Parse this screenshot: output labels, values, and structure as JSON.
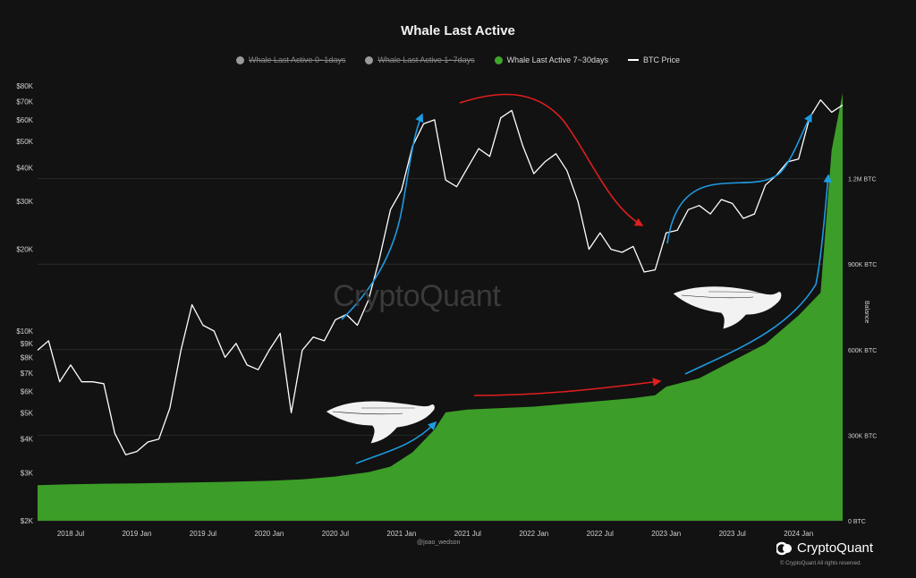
{
  "chart_data": {
    "type": "area",
    "title": "Whale Last Active",
    "y_scale": "log",
    "ylim": [
      2000,
      80000
    ],
    "y2lim": [
      0,
      1500000
    ],
    "y_ticks": [
      {
        "value": 80000,
        "label": "$80K"
      },
      {
        "value": 70000,
        "label": "$70K"
      },
      {
        "value": 60000,
        "label": "$60K"
      },
      {
        "value": 50000,
        "label": "$50K"
      },
      {
        "value": 40000,
        "label": "$40K"
      },
      {
        "value": 30000,
        "label": "$30K"
      },
      {
        "value": 20000,
        "label": "$20K"
      },
      {
        "value": 10000,
        "label": "$10K"
      },
      {
        "value": 9000,
        "label": "$9K"
      },
      {
        "value": 8000,
        "label": "$8K"
      },
      {
        "value": 7000,
        "label": "$7K"
      },
      {
        "value": 6000,
        "label": "$6K"
      },
      {
        "value": 5000,
        "label": "$5K"
      },
      {
        "value": 4000,
        "label": "$4K"
      },
      {
        "value": 3000,
        "label": "$3K"
      },
      {
        "value": 2000,
        "label": "$2K"
      }
    ],
    "y2_ticks": [
      {
        "value": 1200000,
        "label": "1.2M BTC"
      },
      {
        "value": 900000,
        "label": "900K BTC"
      },
      {
        "value": 600000,
        "label": "600K BTC"
      },
      {
        "value": 300000,
        "label": "300K BTC"
      },
      {
        "value": 0,
        "label": "0 BTC"
      }
    ],
    "y2label": "Balance",
    "x_ticks": [
      "2018 Jul",
      "2019 Jan",
      "2019 Jul",
      "2020 Jan",
      "2020 Jul",
      "2021 Jan",
      "2021 Jul",
      "2022 Jan",
      "2022 Jul",
      "2023 Jan",
      "2023 Jul",
      "2024 Jan"
    ],
    "x_tick_dates": [
      "2018-07",
      "2019-01",
      "2019-07",
      "2020-01",
      "2020-07",
      "2021-01",
      "2021-07",
      "2022-01",
      "2022-07",
      "2023-01",
      "2023-07",
      "2024-01"
    ],
    "xlim": [
      "2018-04",
      "2024-05"
    ],
    "legend": [
      {
        "name": "Whale Last Active 0~1days",
        "color": "#9a9a9a",
        "visible": false,
        "marker": "dot"
      },
      {
        "name": "Whale Last Active 1~7days",
        "color": "#9a9a9a",
        "visible": false,
        "marker": "dot"
      },
      {
        "name": "Whale Last Active 7~30days",
        "color": "#3fa52a",
        "visible": true,
        "marker": "dot"
      },
      {
        "name": "BTC Price",
        "color": "#ffffff",
        "visible": true,
        "marker": "line"
      }
    ],
    "series": [
      {
        "name": "Whale Last Active 7~30days",
        "axis": "right",
        "color": "#3fa52a",
        "x": [
          "2018-04",
          "2018-07",
          "2018-10",
          "2019-01",
          "2019-04",
          "2019-07",
          "2019-10",
          "2020-01",
          "2020-04",
          "2020-07",
          "2020-10",
          "2020-12",
          "2021-02",
          "2021-04",
          "2021-05",
          "2021-07",
          "2021-10",
          "2022-01",
          "2022-04",
          "2022-07",
          "2022-10",
          "2022-12",
          "2023-01",
          "2023-04",
          "2023-07",
          "2023-10",
          "2024-01",
          "2024-03",
          "2024-04",
          "2024-05"
        ],
        "y": [
          125000,
          128000,
          130000,
          131000,
          133000,
          135000,
          137000,
          140000,
          145000,
          155000,
          170000,
          190000,
          240000,
          320000,
          380000,
          390000,
          395000,
          400000,
          410000,
          420000,
          430000,
          440000,
          470000,
          500000,
          560000,
          620000,
          720000,
          800000,
          1300000,
          1500000
        ]
      },
      {
        "name": "BTC Price",
        "axis": "left",
        "color": "#ffffff",
        "x": [
          "2018-04",
          "2018-05",
          "2018-06",
          "2018-07",
          "2018-08",
          "2018-09",
          "2018-10",
          "2018-11",
          "2018-12",
          "2019-01",
          "2019-02",
          "2019-03",
          "2019-04",
          "2019-05",
          "2019-06",
          "2019-07",
          "2019-08",
          "2019-09",
          "2019-10",
          "2019-11",
          "2019-12",
          "2020-01",
          "2020-02",
          "2020-03",
          "2020-04",
          "2020-05",
          "2020-06",
          "2020-07",
          "2020-08",
          "2020-09",
          "2020-10",
          "2020-11",
          "2020-12",
          "2021-01",
          "2021-02",
          "2021-03",
          "2021-04",
          "2021-05",
          "2021-06",
          "2021-07",
          "2021-08",
          "2021-09",
          "2021-10",
          "2021-11",
          "2021-12",
          "2022-01",
          "2022-02",
          "2022-03",
          "2022-04",
          "2022-05",
          "2022-06",
          "2022-07",
          "2022-08",
          "2022-09",
          "2022-10",
          "2022-11",
          "2022-12",
          "2023-01",
          "2023-02",
          "2023-03",
          "2023-04",
          "2023-05",
          "2023-06",
          "2023-07",
          "2023-08",
          "2023-09",
          "2023-10",
          "2023-11",
          "2023-12",
          "2024-01",
          "2024-02",
          "2024-03",
          "2024-04",
          "2024-05"
        ],
        "y": [
          8500,
          9200,
          6500,
          7500,
          6500,
          6500,
          6400,
          4200,
          3500,
          3600,
          3900,
          4000,
          5200,
          8500,
          12500,
          10500,
          10000,
          8000,
          9000,
          7500,
          7200,
          8500,
          9800,
          5000,
          8500,
          9500,
          9200,
          11000,
          11500,
          10500,
          13000,
          18500,
          28000,
          33000,
          48000,
          58000,
          60000,
          36000,
          34000,
          40000,
          47000,
          44000,
          61000,
          65000,
          48000,
          38000,
          42000,
          45000,
          39000,
          30000,
          20000,
          23000,
          20000,
          19500,
          20500,
          16500,
          16800,
          23000,
          23500,
          28000,
          29000,
          27000,
          30500,
          29500,
          26000,
          27000,
          34500,
          37500,
          42000,
          43000,
          61000,
          71000,
          64000,
          68000
        ]
      }
    ]
  },
  "ui": {
    "author": "@joao_wedson",
    "brand": "CryptoQuant",
    "copyright": "© CryptoQuant All rights reserved.",
    "watermark": "CryptoQuant"
  }
}
